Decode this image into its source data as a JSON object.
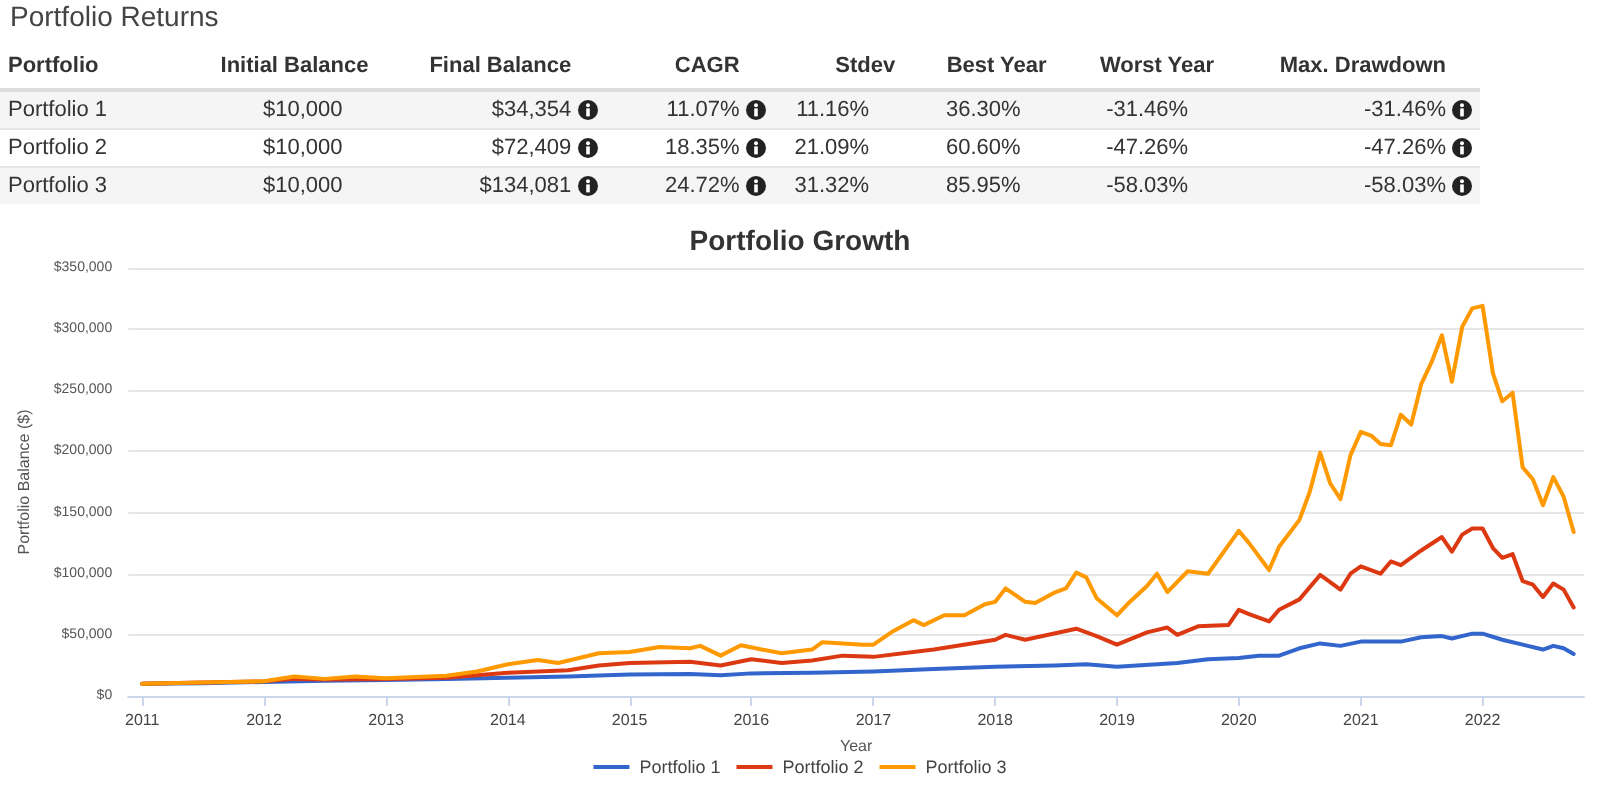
{
  "chart_data": [
    {
      "type": "other",
      "title": "Portfolio Returns",
      "categories": [
        "Portfolio",
        "Initial Balance",
        "Final Balance",
        "CAGR",
        "Stdev",
        "Best Year",
        "Worst Year",
        "Max. Drawdown"
      ],
      "y_categories": [
        "Portfolio 1",
        "Portfolio 2",
        "Portfolio 3"
      ],
      "cell_labels": [
        [
          "$10,000",
          "$34,354",
          "11.07%",
          "11.16%",
          "36.30%",
          "-31.46%",
          "-31.46%"
        ],
        [
          "$10,000",
          "$72,409",
          "18.35%",
          "21.09%",
          "60.60%",
          "-47.26%",
          "-47.26%"
        ],
        [
          "$10,000",
          "$134,081",
          "24.72%",
          "31.32%",
          "85.95%",
          "-58.03%",
          "-58.03%"
        ]
      ]
    },
    {
      "type": "line",
      "title": "Portfolio Growth",
      "xlabel": "Year",
      "ylabel": "Portfolio Balance ($)",
      "xlim": [
        "2010-11-20",
        "2022-11-01"
      ],
      "xticks": [
        "2011",
        "2012",
        "2013",
        "2014",
        "2015",
        "2016",
        "2017",
        "2018",
        "2019",
        "2020",
        "2021",
        "2022"
      ],
      "ylim": [
        0,
        350000
      ],
      "yticks": [
        {
          "value": 0,
          "label": "$0"
        },
        {
          "value": 50000,
          "label": "$50,000"
        },
        {
          "value": 100000,
          "label": "$100,000"
        },
        {
          "value": 150000,
          "label": "$150,000"
        },
        {
          "value": 200000,
          "label": "$200,000"
        },
        {
          "value": 250000,
          "label": "$250,000"
        },
        {
          "value": 300000,
          "label": "$300,000"
        },
        {
          "value": 350000,
          "label": "$350,000"
        }
      ],
      "grid": "y",
      "legend": "bottom",
      "marker": "none",
      "line_style": "solid",
      "series": [
        {
          "name": "Portfolio 1",
          "color": "#3366cc",
          "x": [
            "2011-01",
            "2011-07",
            "2012-01",
            "2012-07",
            "2013-01",
            "2013-07",
            "2014-01",
            "2014-07",
            "2015-01",
            "2015-07",
            "2015-10",
            "2016-01",
            "2016-07",
            "2017-01",
            "2017-07",
            "2018-01",
            "2018-07",
            "2018-10",
            "2019-01",
            "2019-07",
            "2019-10",
            "2020-01",
            "2020-03",
            "2020-05",
            "2020-07",
            "2020-09",
            "2020-11",
            "2021-01",
            "2021-05",
            "2021-07",
            "2021-09",
            "2021-10",
            "2021-12",
            "2022-01",
            "2022-03",
            "2022-05",
            "2022-07",
            "2022-08",
            "2022-09",
            "2022-10"
          ],
          "values": [
            10000,
            10500,
            11500,
            12500,
            13000,
            14000,
            15000,
            16000,
            17500,
            18000,
            17000,
            18500,
            19000,
            20000,
            22000,
            24000,
            25000,
            26000,
            24000,
            27000,
            30000,
            31000,
            33000,
            33000,
            39000,
            43000,
            41000,
            44500,
            44500,
            48000,
            49000,
            47000,
            51000,
            51000,
            46000,
            42000,
            38000,
            41000,
            39000,
            34354
          ]
        },
        {
          "name": "Portfolio 2",
          "color": "#dc3912",
          "x": [
            "2011-01",
            "2011-07",
            "2012-01",
            "2012-04",
            "2012-07",
            "2013-01",
            "2013-07",
            "2014-01",
            "2014-07",
            "2014-10",
            "2015-01",
            "2015-07",
            "2015-10",
            "2016-01",
            "2016-04",
            "2016-07",
            "2016-10",
            "2017-01",
            "2017-07",
            "2018-01",
            "2018-02",
            "2018-04",
            "2018-09",
            "2018-11",
            "2019-01",
            "2019-04",
            "2019-06",
            "2019-07",
            "2019-09",
            "2019-12",
            "2020-01",
            "2020-02",
            "2020-04",
            "2020-05",
            "2020-07",
            "2020-09",
            "2020-11",
            "2020-12",
            "2021-01",
            "2021-03",
            "2021-04",
            "2021-05",
            "2021-07",
            "2021-09",
            "2021-10",
            "2021-11",
            "2021-12",
            "2022-01",
            "2022-02",
            "2022-03",
            "2022-04",
            "2022-05",
            "2022-06",
            "2022-07",
            "2022-08",
            "2022-09",
            "2022-10"
          ],
          "values": [
            10000,
            11000,
            12000,
            14000,
            13500,
            14000,
            15000,
            19000,
            21000,
            25000,
            27000,
            28000,
            25000,
            30000,
            27000,
            29000,
            33000,
            32000,
            38000,
            46000,
            50000,
            46000,
            55000,
            49000,
            42000,
            52000,
            56000,
            50000,
            57000,
            58000,
            70500,
            67000,
            61000,
            70500,
            79000,
            99000,
            87000,
            100000,
            106000,
            100000,
            110000,
            107000,
            119000,
            130000,
            118000,
            132000,
            137000,
            137000,
            121000,
            113000,
            116000,
            94000,
            91000,
            81000,
            92000,
            87000,
            72409
          ]
        },
        {
          "name": "Portfolio 3",
          "color": "#ff9900",
          "x": [
            "2011-01",
            "2011-07",
            "2012-01",
            "2012-04",
            "2012-07",
            "2012-10",
            "2013-01",
            "2013-07",
            "2013-10",
            "2014-01",
            "2014-04",
            "2014-06",
            "2014-10",
            "2015-01",
            "2015-04",
            "2015-07",
            "2015-08",
            "2015-10",
            "2015-12",
            "2016-02",
            "2016-04",
            "2016-07",
            "2016-08",
            "2016-12",
            "2017-01",
            "2017-03",
            "2017-05",
            "2017-06",
            "2017-08",
            "2017-10",
            "2017-12",
            "2018-01",
            "2018-02",
            "2018-04",
            "2018-05",
            "2018-07",
            "2018-08",
            "2018-09",
            "2018-10",
            "2018-11",
            "2019-01",
            "2019-02",
            "2019-04",
            "2019-05",
            "2019-06",
            "2019-08",
            "2019-10",
            "2020-01",
            "2020-02",
            "2020-04",
            "2020-05",
            "2020-07",
            "2020-08",
            "2020-09",
            "2020-10",
            "2020-11",
            "2020-12",
            "2021-01",
            "2021-02",
            "2021-03",
            "2021-04",
            "2021-05",
            "2021-06",
            "2021-07",
            "2021-08",
            "2021-09",
            "2021-10",
            "2021-11",
            "2021-12",
            "2022-01",
            "2022-02",
            "2022-03",
            "2022-04",
            "2022-05",
            "2022-06",
            "2022-07",
            "2022-08",
            "2022-09",
            "2022-10"
          ],
          "values": [
            10000,
            11000,
            12000,
            16000,
            14000,
            16000,
            14500,
            16500,
            20000,
            26000,
            29500,
            27000,
            35000,
            36000,
            40000,
            39000,
            41000,
            33000,
            41500,
            38000,
            35000,
            38000,
            44000,
            42000,
            42000,
            53000,
            62000,
            58000,
            66000,
            66000,
            75000,
            77000,
            88000,
            77000,
            76000,
            85000,
            88000,
            101000,
            97000,
            80000,
            66000,
            75000,
            90000,
            100000,
            85000,
            102000,
            100000,
            135000,
            125000,
            103000,
            122000,
            144000,
            167000,
            199000,
            174000,
            161000,
            197000,
            216000,
            213000,
            206000,
            205000,
            230000,
            222000,
            255000,
            273000,
            295000,
            257000,
            302000,
            317000,
            319000,
            264000,
            241000,
            248000,
            187000,
            177000,
            156000,
            179000,
            163000,
            134081
          ]
        }
      ]
    }
  ]
}
